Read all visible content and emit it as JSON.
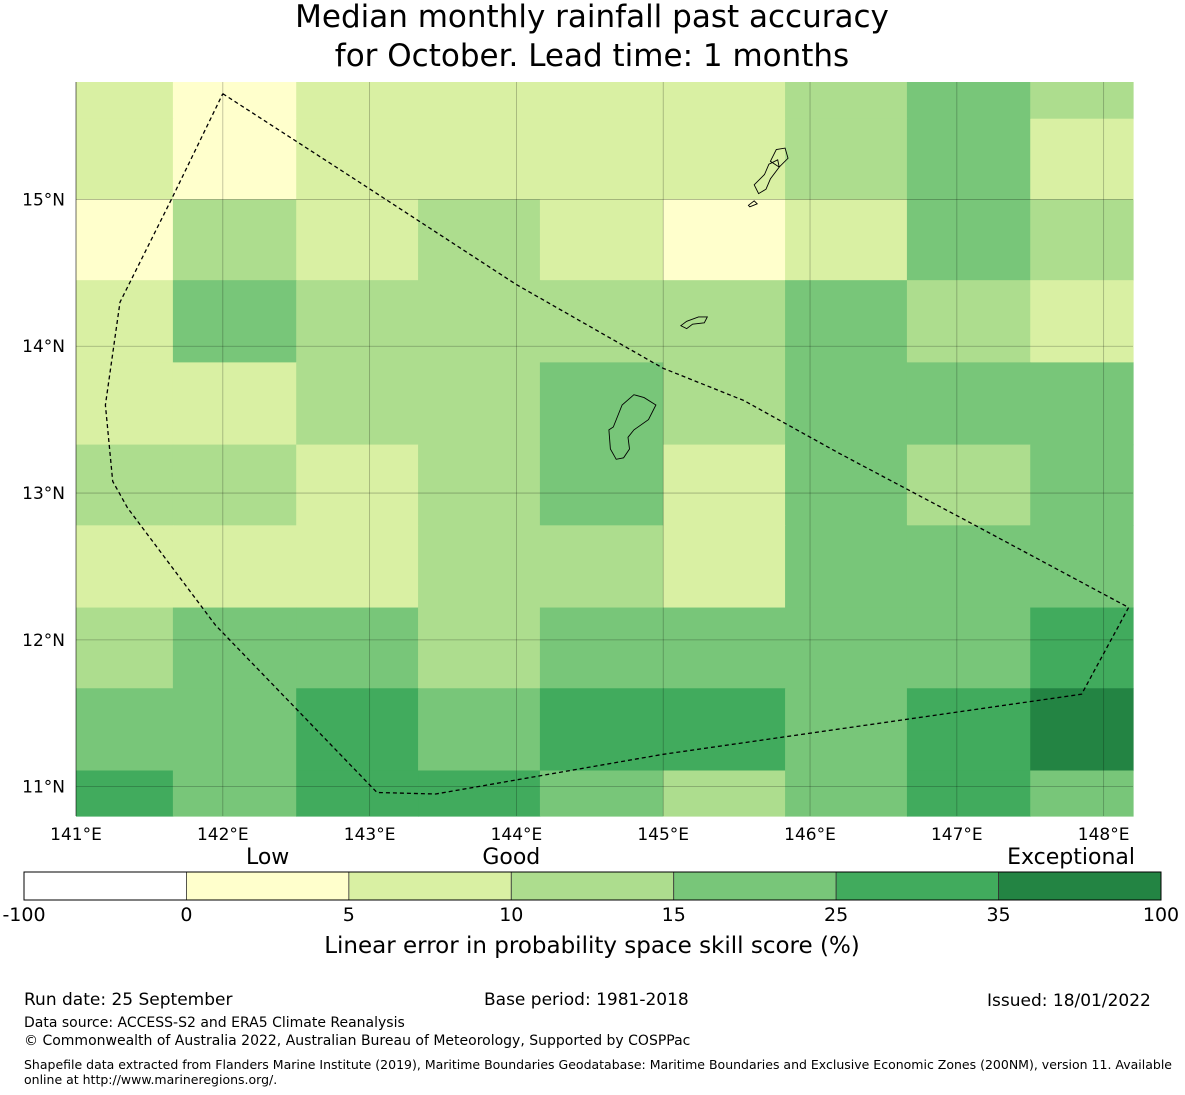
{
  "chart_data": {
    "type": "heatmap",
    "title_lines": [
      "Median monthly rainfall past accuracy",
      "for October. Lead time: 1 months"
    ],
    "x_axis": {
      "range_deg_e": [
        141.0,
        148.2
      ],
      "ticks": [
        {
          "value": 141,
          "label": "141°E"
        },
        {
          "value": 142,
          "label": "142°E"
        },
        {
          "value": 143,
          "label": "143°E"
        },
        {
          "value": 144,
          "label": "144°E"
        },
        {
          "value": 145,
          "label": "145°E"
        },
        {
          "value": 146,
          "label": "146°E"
        },
        {
          "value": 147,
          "label": "147°E"
        },
        {
          "value": 148,
          "label": "148°E"
        }
      ]
    },
    "y_axis": {
      "range_deg_n": [
        10.8,
        15.8
      ],
      "ticks": [
        {
          "value": 11,
          "label": "11°N"
        },
        {
          "value": 12,
          "label": "12°N"
        },
        {
          "value": 13,
          "label": "13°N"
        },
        {
          "value": 14,
          "label": "14°N"
        },
        {
          "value": 15,
          "label": "15°N"
        }
      ]
    },
    "grid_cells": {
      "lon_edges": [
        141.0,
        141.66,
        142.5,
        143.33,
        144.16,
        145.0,
        145.83,
        146.66,
        147.5,
        148.2
      ],
      "lat_edges": [
        15.8,
        15.55,
        15.0,
        14.45,
        13.89,
        13.33,
        12.78,
        12.22,
        11.67,
        11.11,
        10.8
      ],
      "bin_index_rows_north_to_south": [
        [
          2,
          1,
          2,
          2,
          2,
          2,
          3,
          4,
          3
        ],
        [
          2,
          1,
          2,
          2,
          2,
          2,
          3,
          4,
          2
        ],
        [
          1,
          3,
          2,
          3,
          2,
          1,
          2,
          4,
          3
        ],
        [
          2,
          4,
          3,
          3,
          3,
          3,
          4,
          3,
          2
        ],
        [
          2,
          2,
          3,
          3,
          4,
          3,
          4,
          4,
          4
        ],
        [
          3,
          3,
          2,
          3,
          4,
          2,
          4,
          3,
          4
        ],
        [
          2,
          2,
          2,
          3,
          3,
          2,
          4,
          4,
          4
        ],
        [
          3,
          4,
          4,
          3,
          4,
          4,
          4,
          4,
          5
        ],
        [
          4,
          4,
          5,
          4,
          5,
          5,
          4,
          5,
          6
        ],
        [
          5,
          4,
          5,
          5,
          4,
          3,
          4,
          5,
          4
        ]
      ]
    },
    "colorbar": {
      "category_labels": [
        {
          "text": "Low",
          "anchor": "bin-1"
        },
        {
          "text": "Good",
          "anchor": "boundary-3"
        },
        {
          "text": "Exceptional",
          "anchor": "right-end"
        }
      ],
      "bins": [
        {
          "from": -100,
          "to": 0,
          "color": "#ffffff"
        },
        {
          "from": 0,
          "to": 5,
          "color": "#ffffcc"
        },
        {
          "from": 5,
          "to": 10,
          "color": "#d9f0a3"
        },
        {
          "from": 10,
          "to": 15,
          "color": "#addd8e"
        },
        {
          "from": 15,
          "to": 25,
          "color": "#78c679"
        },
        {
          "from": 25,
          "to": 35,
          "color": "#41ab5d"
        },
        {
          "from": 35,
          "to": 100,
          "color": "#238443"
        }
      ],
      "tick_labels": [
        "-100",
        "0",
        "5",
        "10",
        "15",
        "25",
        "35",
        "100"
      ],
      "axis_label": "Linear error in probability space skill score (%)"
    },
    "boundary_polygon_lonlat": [
      [
        142.0,
        15.72
      ],
      [
        142.88,
        15.15
      ],
      [
        144.0,
        14.42
      ],
      [
        145.0,
        13.85
      ],
      [
        145.55,
        13.63
      ],
      [
        146.2,
        13.27
      ],
      [
        147.05,
        12.82
      ],
      [
        148.17,
        12.22
      ],
      [
        147.85,
        11.63
      ],
      [
        145.0,
        11.22
      ],
      [
        143.45,
        10.95
      ],
      [
        143.05,
        10.96
      ],
      [
        141.95,
        12.1
      ],
      [
        141.35,
        12.9
      ],
      [
        141.25,
        13.08
      ],
      [
        141.2,
        13.6
      ],
      [
        141.3,
        14.3
      ],
      [
        141.65,
        15.0
      ],
      [
        142.0,
        15.72
      ]
    ],
    "islands_lonlat": [
      [
        [
          144.66,
          13.45
        ],
        [
          144.72,
          13.6
        ],
        [
          144.8,
          13.67
        ],
        [
          144.87,
          13.65
        ],
        [
          144.95,
          13.6
        ],
        [
          144.9,
          13.5
        ],
        [
          144.8,
          13.43
        ],
        [
          144.76,
          13.38
        ],
        [
          144.77,
          13.3
        ],
        [
          144.73,
          13.24
        ],
        [
          144.68,
          13.23
        ],
        [
          144.64,
          13.3
        ],
        [
          144.63,
          13.43
        ],
        [
          144.66,
          13.45
        ]
      ],
      [
        [
          145.12,
          14.14
        ],
        [
          145.16,
          14.17
        ],
        [
          145.24,
          14.2
        ],
        [
          145.3,
          14.2
        ],
        [
          145.28,
          14.16
        ],
        [
          145.2,
          14.15
        ],
        [
          145.16,
          14.12
        ],
        [
          145.12,
          14.14
        ]
      ],
      [
        [
          145.62,
          15.1
        ],
        [
          145.69,
          15.17
        ],
        [
          145.72,
          15.24
        ],
        [
          145.78,
          15.27
        ],
        [
          145.79,
          15.22
        ],
        [
          145.73,
          15.14
        ],
        [
          145.7,
          15.07
        ],
        [
          145.65,
          15.04
        ],
        [
          145.62,
          15.1
        ]
      ],
      [
        [
          145.58,
          14.96
        ],
        [
          145.62,
          14.99
        ],
        [
          145.64,
          14.97
        ],
        [
          145.59,
          14.95
        ],
        [
          145.58,
          14.96
        ]
      ],
      [
        [
          145.73,
          15.26
        ],
        [
          145.77,
          15.34
        ],
        [
          145.83,
          15.35
        ],
        [
          145.85,
          15.28
        ],
        [
          145.79,
          15.22
        ],
        [
          145.73,
          15.26
        ]
      ]
    ]
  },
  "footer": {
    "run_date": "Run date: 25 September",
    "base_period": "Base period: 1981-2018",
    "issued": "Issued: 18/01/2022",
    "data_source": "Data source: ACCESS-S2 and ERA5 Climate Reanalysis",
    "copyright": "© Commonwealth of Australia 2022, Australian Bureau of Meteorology, Supported by COSPPac",
    "shapefile_note": "Shapefile data extracted from Flanders Marine Institute (2019), Maritime Boundaries Geodatabase: Maritime Boundaries and Exclusive Economic Zones (200NM), version 11. Available online at http://www.marineregions.org/."
  }
}
